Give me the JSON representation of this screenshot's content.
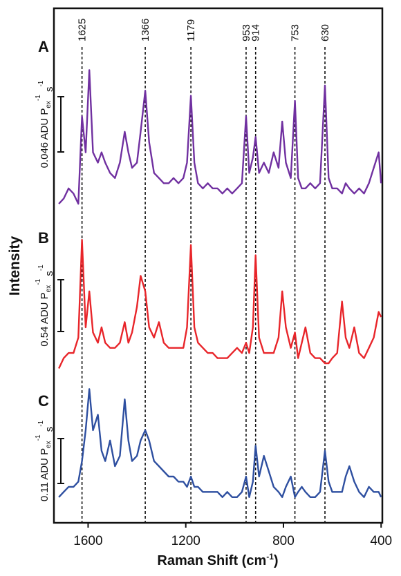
{
  "chart_data": {
    "type": "line",
    "ylabel": "Intensity",
    "xlabel_parts": [
      "Raman Shift (cm",
      "-1",
      ")"
    ],
    "xlim": [
      1740,
      395
    ],
    "xticks": [
      1600,
      1200,
      800,
      400
    ],
    "ylim": [
      0,
      100
    ],
    "peaks": [
      1625,
      1366,
      1179,
      953,
      914,
      753,
      630
    ],
    "x": [
      1720,
      1700,
      1680,
      1660,
      1640,
      1625,
      1610,
      1595,
      1580,
      1560,
      1545,
      1530,
      1510,
      1490,
      1470,
      1450,
      1435,
      1420,
      1400,
      1385,
      1366,
      1350,
      1330,
      1310,
      1290,
      1270,
      1250,
      1230,
      1210,
      1195,
      1179,
      1165,
      1150,
      1130,
      1110,
      1090,
      1070,
      1050,
      1030,
      1010,
      990,
      970,
      953,
      940,
      925,
      914,
      900,
      880,
      860,
      840,
      820,
      805,
      790,
      770,
      753,
      740,
      725,
      710,
      690,
      670,
      650,
      630,
      615,
      600,
      580,
      560,
      545,
      530,
      510,
      490,
      470,
      450,
      430,
      410,
      400
    ],
    "series": [
      {
        "name": "A",
        "color": "#7030a0",
        "scale_label_parts": [
          "0.046 ADU P",
          "ex",
          "-1",
          " s",
          "-1"
        ],
        "values": [
          62,
          63,
          65,
          64,
          62,
          79,
          72,
          88,
          72,
          70,
          72,
          70,
          68,
          67,
          70,
          76,
          72,
          69,
          70,
          76,
          84,
          74,
          68,
          67,
          66,
          66,
          67,
          66,
          67,
          70,
          83,
          70,
          66,
          65,
          66,
          65,
          65,
          64,
          65,
          64,
          65,
          66,
          79,
          68,
          71,
          75,
          68,
          70,
          68,
          72,
          69,
          78,
          70,
          67,
          82,
          67,
          65,
          65,
          66,
          65,
          66,
          85,
          67,
          65,
          65,
          64,
          66,
          65,
          64,
          65,
          64,
          66,
          69,
          72,
          66
        ]
      },
      {
        "name": "B",
        "color": "#e8252a",
        "scale_label_parts": [
          "0.54 ADU P",
          "ex",
          "-1",
          " s",
          "-1"
        ],
        "values": [
          30,
          32,
          33,
          33,
          36,
          55,
          38,
          45,
          37,
          35,
          38,
          35,
          34,
          34,
          35,
          39,
          35,
          37,
          42,
          48,
          45,
          38,
          36,
          39,
          35,
          34,
          34,
          34,
          34,
          38,
          54,
          38,
          35,
          34,
          33,
          33,
          32,
          32,
          32,
          33,
          34,
          33,
          35,
          33,
          38,
          52,
          36,
          33,
          33,
          33,
          36,
          45,
          38,
          34,
          37,
          32,
          35,
          38,
          33,
          32,
          32,
          31,
          31,
          32,
          33,
          43,
          36,
          34,
          38,
          33,
          32,
          34,
          36,
          41,
          40
        ]
      },
      {
        "name": "C",
        "color": "#2e4fa0",
        "scale_label_parts": [
          "0.11 ADU P",
          "ex",
          "-1",
          " s",
          "-1"
        ],
        "values": [
          5,
          6,
          7,
          7,
          8,
          12,
          18,
          26,
          18,
          21,
          14,
          12,
          16,
          11,
          13,
          24,
          16,
          12,
          13,
          16,
          18,
          16,
          12,
          11,
          10,
          9,
          9,
          8,
          8,
          7,
          9,
          7,
          7,
          6,
          6,
          6,
          6,
          5,
          6,
          5,
          5,
          6,
          9,
          5,
          8,
          15,
          9,
          13,
          10,
          7,
          6,
          5,
          7,
          9,
          5,
          6,
          7,
          6,
          5,
          5,
          6,
          14,
          8,
          6,
          6,
          6,
          9,
          11,
          8,
          6,
          5,
          7,
          6,
          6,
          5
        ]
      }
    ]
  }
}
